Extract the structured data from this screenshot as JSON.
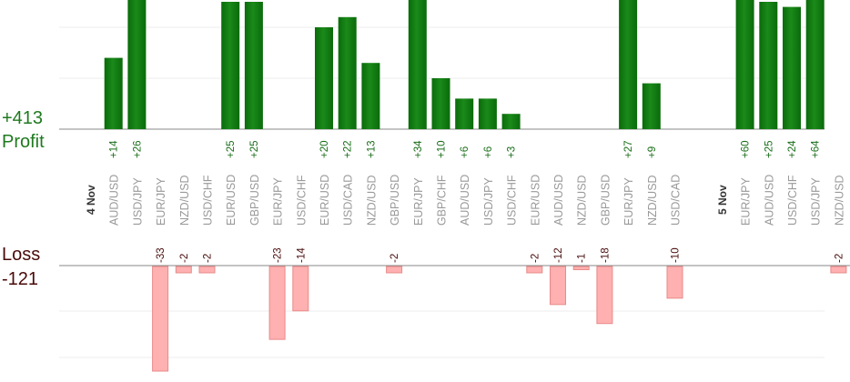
{
  "chart_data": {
    "type": "bar",
    "summary": {
      "profit_total": "+413",
      "profit_label": "Profit",
      "loss_label": "Loss",
      "loss_total": "-121"
    },
    "days": [
      {
        "label": "4 Nov",
        "slot": 0
      },
      {
        "label": "5 Nov",
        "slot": 27
      }
    ],
    "categories": [
      "AUD/USD",
      "USD/JPY",
      "EUR/JPY",
      "NZD/USD",
      "USD/CHF",
      "EUR/USD",
      "GBP/USD",
      "EUR/JPY",
      "USD/CHF",
      "EUR/USD",
      "USD/CAD",
      "NZD/USD",
      "GBP/USD",
      "EUR/JPY",
      "GBP/CHF",
      "AUD/USD",
      "USD/JPY",
      "USD/CHF",
      "EUR/USD",
      "AUD/USD",
      "NZD/USD",
      "GBP/USD",
      "EUR/JPY",
      "NZD/USD",
      "USD/CAD",
      "EUR/JPY",
      "AUD/USD",
      "USD/CHF",
      "USD/JPY",
      "NZD/USD"
    ],
    "slots": [
      1,
      2,
      3,
      4,
      5,
      6,
      7,
      8,
      9,
      10,
      11,
      12,
      13,
      14,
      15,
      16,
      17,
      18,
      19,
      20,
      21,
      22,
      23,
      24,
      25,
      28,
      29,
      30,
      31,
      32
    ],
    "series": [
      {
        "values": [
          14,
          26,
          -33,
          -2,
          -2,
          25,
          25,
          -23,
          -14,
          20,
          22,
          13,
          -2,
          34,
          10,
          6,
          6,
          3,
          -2,
          -12,
          -1,
          -18,
          27,
          9,
          -10,
          60,
          25,
          24,
          64,
          -2
        ]
      }
    ],
    "profit_labels": [
      "+14",
      "+26",
      "",
      "",
      "",
      "+25",
      "+25",
      "",
      "",
      "+20",
      "+22",
      "+13",
      "",
      "+34",
      "+10",
      "+6",
      "+6",
      "+3",
      "",
      "",
      "",
      "",
      "+27",
      "+9",
      "",
      "+60",
      "+25",
      "+24",
      "+64",
      ""
    ],
    "loss_labels": [
      "",
      "",
      "-33",
      "-2",
      "-2",
      "",
      "",
      "-23",
      "-14",
      "",
      "",
      "",
      "-2",
      "",
      "",
      "",
      "",
      "",
      "-2",
      "-12",
      "-1",
      "-18",
      "",
      "",
      "-10",
      "",
      "",
      "",
      "",
      "-2"
    ],
    "profit_range": [
      0,
      9
    ],
    "loss_range": [
      -33,
      0
    ],
    "grid": true,
    "colors": {
      "profit_fill": "#0a6b0a",
      "profit_fill_light": "#1a8a1a",
      "profit_text": "#1a6e1a",
      "loss_fill": "#ffb0b0",
      "loss_stroke": "#e88a8a",
      "loss_text": "#4a0f0f",
      "total_profit": "#1f7a1f",
      "total_loss": "#4a0a0a",
      "category_text": "#999999",
      "day_text": "#333333",
      "axis": "#888888",
      "grid": "#eeeeee"
    }
  }
}
